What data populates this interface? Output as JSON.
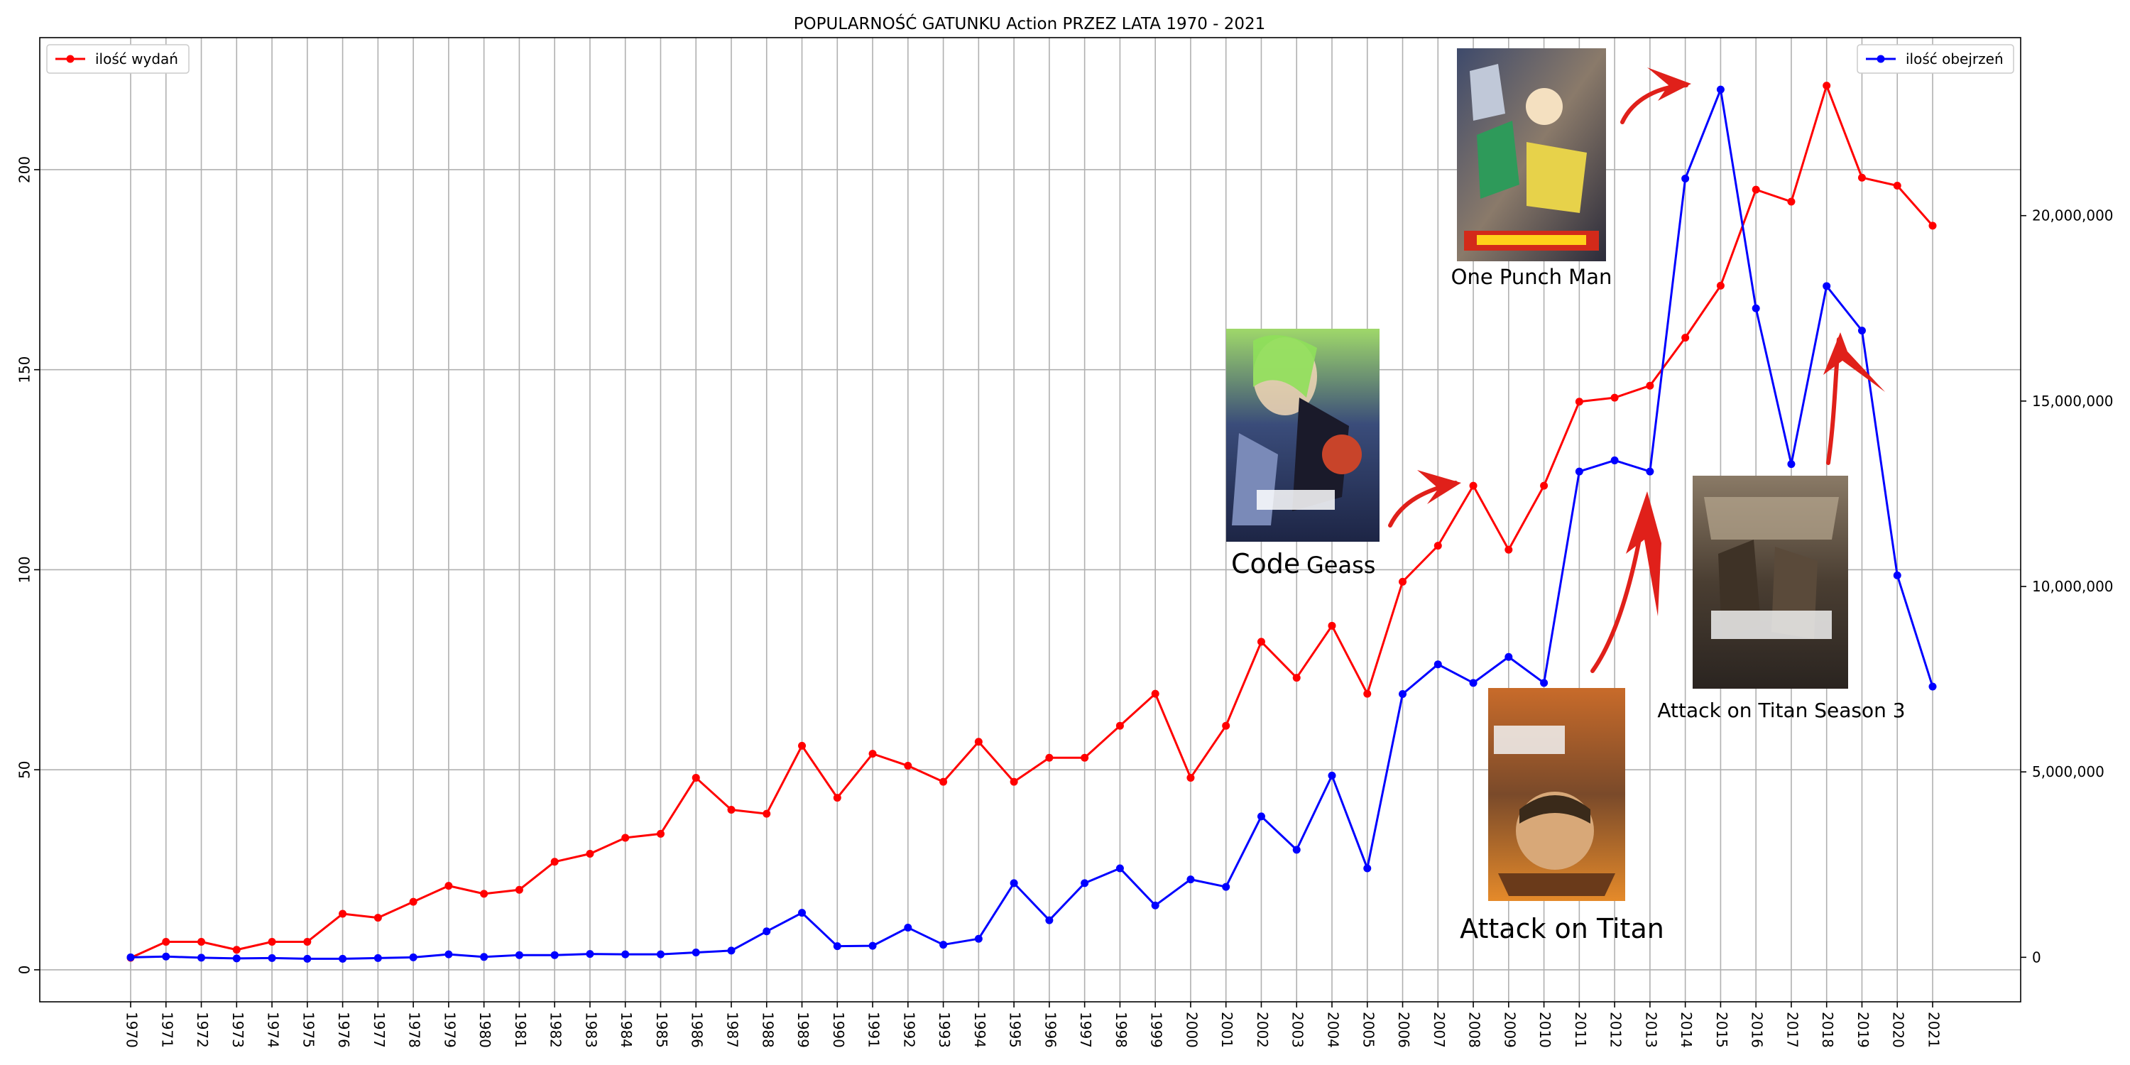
{
  "chart_data": {
    "type": "line",
    "title": "POPULARNOŚĆ GATUNKU Action PRZEZ LATA 1970 - 2021",
    "x": [
      1970,
      1971,
      1972,
      1973,
      1974,
      1975,
      1976,
      1977,
      1978,
      1979,
      1980,
      1981,
      1982,
      1983,
      1984,
      1985,
      1986,
      1987,
      1988,
      1989,
      1990,
      1991,
      1992,
      1993,
      1994,
      1995,
      1996,
      1997,
      1998,
      1999,
      2000,
      2001,
      2002,
      2003,
      2004,
      2005,
      2006,
      2007,
      2008,
      2009,
      2010,
      2011,
      2012,
      2013,
      2014,
      2015,
      2016,
      2017,
      2018,
      2019,
      2020,
      2021
    ],
    "xlim": [
      1970,
      2021
    ],
    "left_axis": {
      "ylim": [
        -8,
        233
      ],
      "ticks": [
        0,
        50,
        100,
        150,
        200
      ]
    },
    "right_axis": {
      "ylim": [
        -1200000,
        24800000
      ],
      "ticks": [
        0,
        5000000,
        10000000,
        15000000,
        20000000
      ],
      "tick_labels": [
        "0",
        "5,000,000",
        "10,000,000",
        "15,000,000",
        "20,000,000"
      ]
    },
    "grid": true,
    "series": [
      {
        "name": "ilość wydań",
        "axis": "left",
        "color": "#ff0000",
        "legend": "top-left",
        "values": [
          3,
          7,
          7,
          5,
          7,
          7,
          14,
          13,
          17,
          21,
          19,
          20,
          27,
          29,
          33,
          34,
          48,
          40,
          39,
          56,
          43,
          54,
          51,
          47,
          57,
          47,
          53,
          53,
          61,
          69,
          48,
          61,
          82,
          73,
          86,
          69,
          97,
          106,
          121,
          105,
          121,
          142,
          143,
          146,
          158,
          171,
          195,
          192,
          221,
          198,
          196,
          186
        ]
      },
      {
        "name": "ilość obejrzeń",
        "axis": "right",
        "color": "#0000ff",
        "legend": "top-right",
        "values": [
          0,
          20000,
          -10000,
          -30000,
          -20000,
          -40000,
          -40000,
          -20000,
          0,
          80000,
          10000,
          60000,
          60000,
          90000,
          80000,
          80000,
          130000,
          180000,
          700000,
          1200000,
          300000,
          310000,
          800000,
          340000,
          500000,
          2000000,
          1000000,
          2000000,
          2400000,
          1400000,
          2100000,
          1900000,
          3800000,
          2900000,
          4900000,
          2400000,
          7100000,
          7900000,
          7400000,
          8100000,
          7400000,
          13100000,
          13400000,
          13100000,
          21000000,
          23400000,
          17500000,
          13300000,
          18100000,
          16900000,
          10300000,
          7300000
        ]
      }
    ],
    "annotations": [
      "Code Geass",
      "One Punch Man",
      "Attack on Titan",
      "Attack on Titan Season 3"
    ]
  },
  "captions": {
    "code_geass_a": "Code",
    "code_geass_b": "Geass",
    "one_punch_man": "One Punch Man",
    "attack_on_titan": "Attack on  Titan",
    "attack_on_titan_s3": "Attack on Titan Season 3"
  },
  "posters": {
    "code_geass": "code-geass-poster",
    "one_punch_man": "one-punch-man-poster",
    "attack_on_titan": "attack-on-titan-poster",
    "attack_on_titan_s3": "attack-on-titan-s3-poster"
  }
}
